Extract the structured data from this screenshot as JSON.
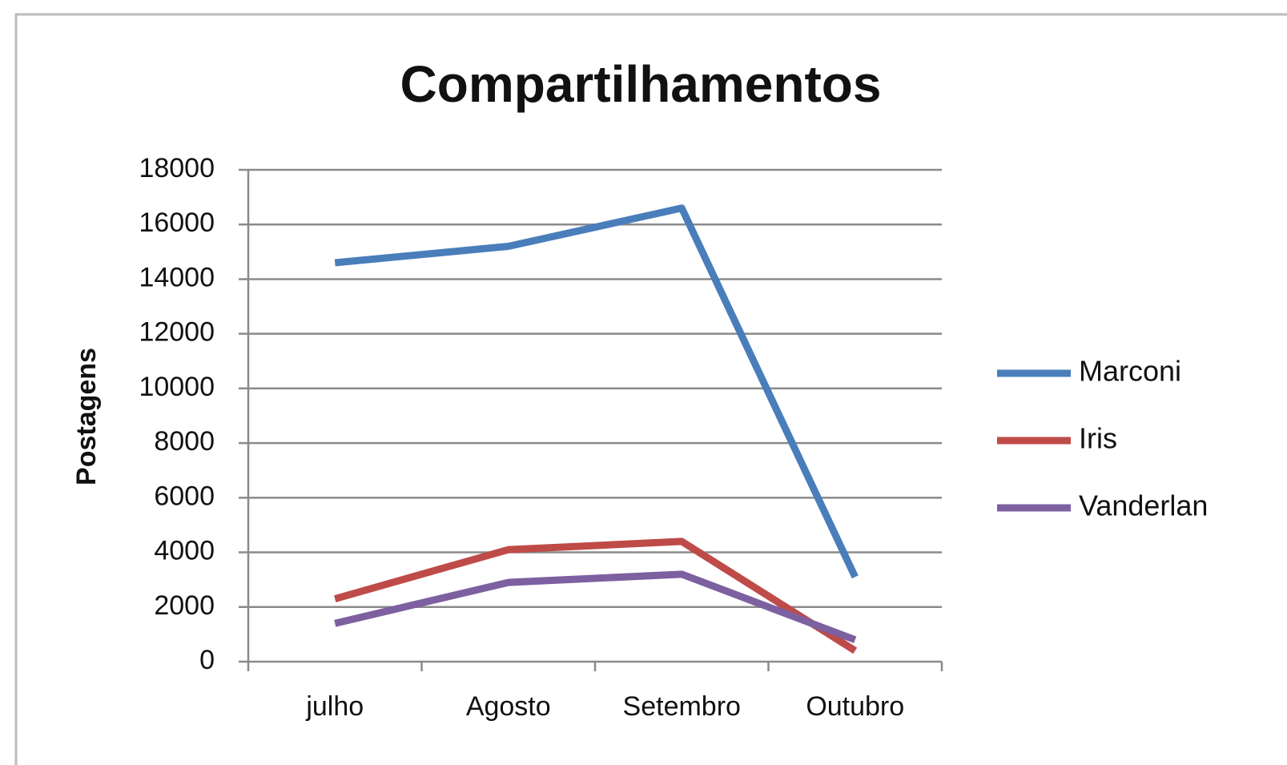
{
  "chart_data": {
    "type": "line",
    "title": "Compartilhamentos",
    "y_label": "Postagens",
    "categories": [
      "julho",
      "Agosto",
      "Setembro",
      "Outubro"
    ],
    "series": [
      {
        "name": "Marconi",
        "color": "#4a7ebb",
        "values": [
          14600,
          15200,
          16600,
          3100
        ]
      },
      {
        "name": "Iris",
        "color": "#be4b48",
        "values": [
          2300,
          4100,
          4400,
          400
        ]
      },
      {
        "name": "Vanderlan",
        "color": "#7d60a0",
        "values": [
          1400,
          2900,
          3200,
          800
        ]
      }
    ],
    "ylim": [
      0,
      18000
    ],
    "yticks": [
      0,
      2000,
      4000,
      6000,
      8000,
      10000,
      12000,
      14000,
      16000,
      18000
    ],
    "grid": true,
    "legend": "right"
  }
}
